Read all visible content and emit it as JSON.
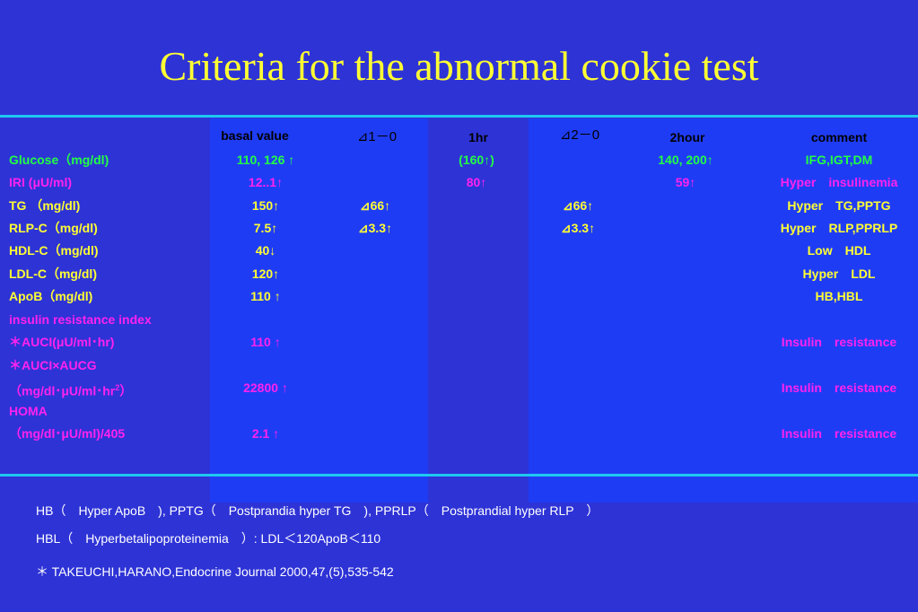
{
  "title": "Criteria for the abnormal cookie test",
  "headers": {
    "basal": "basal value",
    "d10": "⊿1－0",
    "hr1": "1hr",
    "d20": "⊿2－0",
    "hr2": "2hour",
    "comment": "comment"
  },
  "rows": [
    {
      "label": "Glucose（mg/dl)",
      "basal": "110, 126 ↑",
      "hr1": "(160↑)",
      "hr2": "140, 200↑",
      "comment": "IFG,IGT,DM"
    },
    {
      "label": "IRI (μU/ml)",
      "basal": "12..1↑",
      "hr1": "80↑",
      "hr2": "59↑",
      "comment": "Hyper　insulinemia"
    },
    {
      "label": "TG （mg/dl)",
      "basal": "150↑",
      "d10": "⊿66↑",
      "d20": "⊿66↑",
      "comment": "Hyper　TG,PPTG"
    },
    {
      "label": "RLP-C（mg/dl)",
      "basal": "7.5↑",
      "d10": "⊿3.3↑",
      "d20": "⊿3.3↑",
      "comment": "Hyper　RLP,PPRLP"
    },
    {
      "label": "HDL-C（mg/dl)",
      "basal": "40↓",
      "comment": "Low　HDL"
    },
    {
      "label": "LDL-C（mg/dl)",
      "basal": "120↑",
      "comment": "Hyper　LDL"
    },
    {
      "label": "ApoB（mg/dl)",
      "basal": "110 ↑",
      "comment": "HB,HBL"
    },
    {
      "label": "insulin resistance index"
    },
    {
      "label": "＊AUCI(μU/ml･hr)",
      "basal": "110 ↑",
      "comment": "Insulin　resistance"
    },
    {
      "label": "＊AUCI×AUCG"
    },
    {
      "label": "（mg/dl･μU/ml･hr",
      "label_sup": "2",
      "label_end": "）",
      "basal": "22800 ↑",
      "comment": "Insulin　resistance"
    },
    {
      "label": "HOMA"
    },
    {
      "label": "（mg/dl･μU/ml)/405",
      "basal": "2.1 ↑",
      "comment": "Insulin　resistance"
    }
  ],
  "footnotes": [
    "HB（　Hyper ApoB　),  PPTG（　Postprandia hyper TG　),  PPRLP（　Postprandial hyper RLP　）",
    "HBL（　Hyperbetalipoproteinemia　）:  LDL＜120ApoB＜110",
    "＊ TAKEUCHI,HARANO,Endocrine Journal 2000,47,(5),535-542"
  ]
}
